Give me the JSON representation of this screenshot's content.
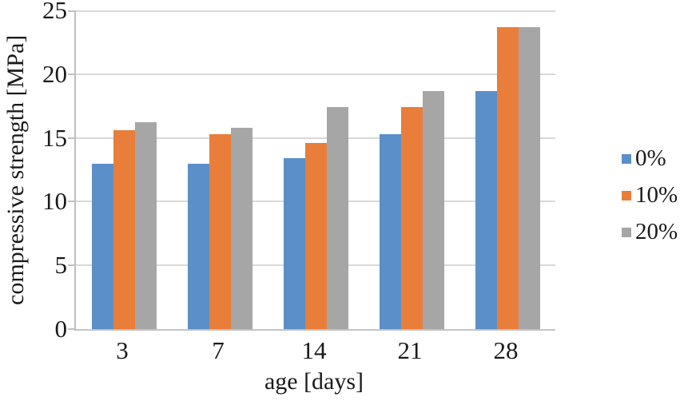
{
  "chart_data": {
    "type": "bar",
    "title": "",
    "xlabel": "age [days]",
    "ylabel": "compressive strength [MPa]",
    "categories": [
      "3",
      "7",
      "14",
      "21",
      "28"
    ],
    "series": [
      {
        "name": "0%",
        "color": "#5B8FC9",
        "values": [
          13.0,
          13.0,
          13.4,
          15.3,
          18.7
        ]
      },
      {
        "name": "10%",
        "color": "#E87E3A",
        "values": [
          15.6,
          15.3,
          14.6,
          17.4,
          23.7
        ]
      },
      {
        "name": "20%",
        "color": "#A6A6A6",
        "values": [
          16.2,
          15.8,
          17.4,
          18.7,
          23.7
        ]
      }
    ],
    "ylim": [
      0,
      25
    ],
    "ytick_step": 5,
    "yticks": [
      0,
      5,
      10,
      15,
      20,
      25
    ],
    "grid": "horizontal",
    "gridline_color": "#D9D9D9",
    "axis_color": "#C0C0C0",
    "text_color": "#1A1A1A",
    "legend_position": "right",
    "legend_labels": [
      "0%",
      "10%",
      "20%"
    ]
  }
}
